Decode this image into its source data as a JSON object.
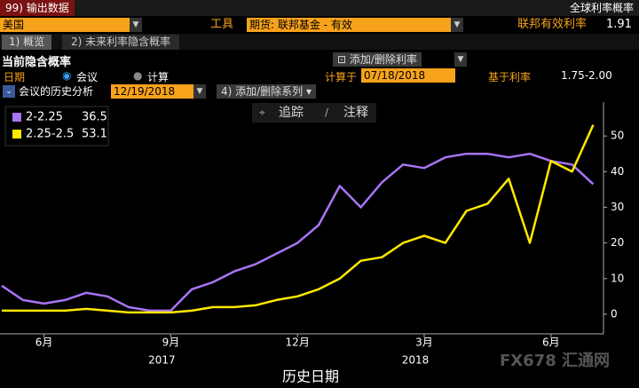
{
  "header": {
    "menu": "99) 输出数据",
    "title": "全球利率概率"
  },
  "controls": {
    "country": "美国",
    "instrument_label": "工具",
    "instrument": "期货: 联邦基金 - 有效",
    "rate_label": "联邦有效利率",
    "rate": "1.91"
  },
  "tabs": [
    "1) 概览",
    "2) 未来利率隐含概率"
  ],
  "section": {
    "title": "当前隐含概率",
    "add_rate_button": "添加/删除利率",
    "date_label": "日期",
    "options": [
      "会议",
      "计算"
    ],
    "calc_label": "计算于",
    "calc_date": "07/18/2018",
    "base_label": "基于利率",
    "base_rate": "1.75-2.00"
  },
  "history": {
    "label": "会议的历史分析",
    "meeting_date": "12/19/2018",
    "add_series_button": "4) 添加/删除系列"
  },
  "toolbar": [
    "追踪",
    "注释"
  ],
  "watermark": "FX678 汇通网",
  "chart_data": {
    "type": "line",
    "xlabel": "历史日期",
    "year_labels": [
      "2017",
      "2018"
    ],
    "categories": [
      null,
      null,
      "6月",
      null,
      null,
      null,
      null,
      null,
      "9月",
      null,
      null,
      null,
      null,
      null,
      "12月",
      null,
      null,
      null,
      null,
      null,
      "3月",
      null,
      null,
      null,
      null,
      null,
      "6月",
      null,
      null
    ],
    "series": [
      {
        "name": "2-2.25",
        "color": "#a874f5",
        "values": [
          8,
          4,
          3,
          4,
          6,
          5,
          2,
          1,
          1,
          7,
          9,
          12,
          14,
          17,
          20,
          25,
          36,
          30,
          37,
          42,
          41,
          44,
          45,
          45,
          44,
          45,
          43,
          42,
          36.5
        ]
      },
      {
        "name": "2.25-2.5",
        "color": "#ffe800",
        "values": [
          1,
          1,
          1,
          1,
          1.5,
          1,
          0.5,
          0.5,
          0.5,
          1,
          2,
          2,
          2.5,
          4,
          5,
          7,
          10,
          15,
          16,
          20,
          22,
          20,
          29,
          31,
          38,
          20,
          43,
          40,
          53.1
        ]
      }
    ],
    "ylim": [
      -5.5,
      59.5
    ],
    "yticks": [
      0,
      10,
      20,
      30,
      40,
      50
    ],
    "grid": false
  }
}
